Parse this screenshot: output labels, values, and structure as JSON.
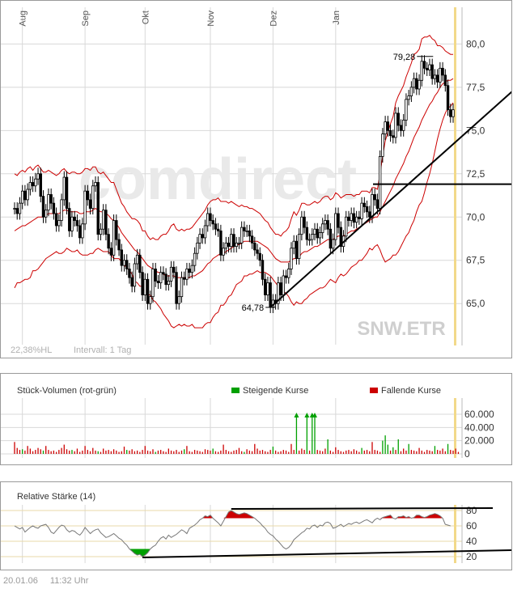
{
  "main": {
    "months": [
      "Aug",
      "Sep",
      "Okt",
      "Nov",
      "Dez",
      "Jan"
    ],
    "y_ticks": [
      "80,0",
      "77,5",
      "75,0",
      "72,5",
      "70,0",
      "67,5",
      "65,0"
    ],
    "watermark": "comdirect",
    "symbol": "SNW.ETR",
    "info_left": "22,38%HL",
    "info_interval": "Intervall: 1 Tag",
    "high_label": "79,28",
    "low_label": "64,78"
  },
  "volume": {
    "title": "Stück-Volumen (rot-grün)",
    "legend_up": "Steigende Kurse",
    "legend_down": "Fallende Kurse",
    "y_ticks": [
      "60.000",
      "40.000",
      "20.000",
      "0"
    ]
  },
  "rsi": {
    "title": "Relative Stärke (14)",
    "y_ticks": [
      "80",
      "60",
      "40",
      "20"
    ]
  },
  "footer": {
    "date": "20.01.06",
    "time": "11:32 Uhr"
  },
  "colors": {
    "band": "#cc0000",
    "up": "#00a000",
    "down": "#cc0000",
    "grid": "#d8d8d8",
    "highlight": "#f2d98a",
    "trend": "#000000"
  },
  "chart_data": [
    {
      "type": "candlestick",
      "x_axis": "date",
      "x_labels": [
        "Aug",
        "Sep",
        "Okt",
        "Nov",
        "Dez",
        "Jan"
      ],
      "ylim": [
        63.7,
        81.0
      ],
      "y_ticks": [
        80.0,
        77.5,
        75.0,
        72.5,
        70.0,
        67.5,
        65.0
      ],
      "close": [
        70.5,
        70.2,
        70.8,
        71.5,
        71.0,
        71.6,
        72.0,
        71.8,
        72.2,
        72.5,
        71.2,
        70.0,
        70.4,
        71.3,
        70.8,
        70.2,
        69.5,
        69.8,
        71.0,
        72.3,
        70.5,
        69.2,
        70.0,
        69.8,
        69.5,
        68.8,
        69.6,
        71.5,
        71.0,
        70.5,
        71.8,
        72.0,
        69.0,
        69.3,
        70.4,
        69.0,
        68.2,
        67.8,
        69.8,
        68.7,
        68.1,
        67.2,
        67.5,
        67.0,
        66.5,
        66.0,
        67.3,
        67.8,
        66.8,
        65.5,
        66.4,
        65.0,
        65.4,
        67.0,
        66.3,
        66.2,
        66.8,
        66.7,
        66.1,
        66.3,
        67.1,
        66.8,
        65.0,
        65.4,
        66.5,
        66.4,
        67.0,
        66.8,
        67.2,
        67.9,
        68.5,
        69.0,
        68.8,
        69.5,
        70.2,
        69.8,
        69.6,
        69.3,
        69.2,
        67.8,
        68.2,
        68.5,
        68.3,
        69.0,
        68.3,
        68.5,
        68.5,
        69.4,
        69.2,
        69.2,
        68.9,
        68.5,
        68.1,
        67.9,
        67.5,
        66.4,
        65.5,
        66.2,
        64.8,
        65.2,
        65.0,
        66.2,
        65.5,
        66.6,
        66.5,
        67.0,
        68.2,
        68.6,
        67.6,
        69.0,
        70.0,
        69.4,
        68.7,
        68.7,
        69.0,
        69.3,
        68.8,
        69.1,
        69.6,
        69.8,
        69.3,
        68.2,
        68.7,
        70.2,
        69.4,
        68.3,
        68.9,
        70.0,
        69.8,
        70.2,
        69.7,
        70.0,
        69.9,
        70.8,
        70.6,
        70.3,
        70.0,
        71.3,
        71.0,
        70.5,
        73.5,
        74.8,
        75.5,
        75.0,
        74.7,
        74.6,
        76.0,
        75.3,
        75.0,
        75.6,
        76.8,
        77.0,
        77.5,
        78.0,
        77.4,
        77.9,
        79.0,
        78.6,
        78.5,
        78.8,
        78.0,
        78.2,
        77.8,
        78.6,
        78.2,
        77.6,
        76.2,
        75.8,
        76.2
      ],
      "band_upper": [
        72.5,
        72.4,
        72.6,
        72.7,
        72.6,
        72.8,
        72.9,
        72.7,
        72.9,
        73.0,
        72.8,
        72.6,
        72.6,
        72.7,
        72.6,
        72.5,
        72.4,
        72.5,
        72.7,
        72.8,
        72.6,
        72.5,
        72.6,
        72.6,
        72.5,
        72.5,
        72.6,
        72.8,
        72.8,
        72.7,
        72.9,
        72.9,
        72.6,
        72.5,
        72.6,
        72.4,
        72.2,
        72.0,
        72.0,
        71.6,
        71.2,
        70.8,
        70.6,
        70.3,
        70.1,
        69.9,
        69.9,
        69.8,
        69.6,
        69.2,
        69.2,
        68.9,
        68.7,
        68.8,
        68.7,
        68.7,
        68.9,
        69.0,
        69.0,
        69.2,
        69.5,
        69.6,
        69.3,
        69.2,
        69.3,
        69.2,
        69.3,
        69.3,
        69.4,
        69.6,
        69.8,
        70.0,
        70.2,
        70.4,
        70.7,
        70.9,
        71.0,
        71.0,
        71.1,
        70.9,
        70.9,
        70.9,
        70.8,
        70.9,
        70.8,
        70.7,
        70.6,
        70.7,
        70.6,
        70.6,
        70.5,
        70.5,
        70.4,
        70.3,
        70.2,
        70.0,
        69.8,
        69.7,
        69.4,
        69.2,
        69.0,
        69.0,
        68.9,
        69.1,
        69.2,
        69.4,
        69.9,
        70.3,
        70.1,
        70.4,
        70.8,
        70.8,
        70.7,
        70.7,
        70.8,
        70.9,
        70.8,
        70.9,
        71.1,
        71.2,
        71.2,
        71.0,
        71.1,
        71.4,
        71.3,
        71.1,
        71.2,
        71.3,
        71.3,
        71.3,
        71.2,
        71.3,
        71.3,
        71.5,
        71.5,
        71.5,
        71.4,
        71.7,
        71.7,
        71.6,
        72.5,
        73.5,
        74.4,
        74.9,
        75.4,
        75.8,
        76.6,
        77.0,
        77.3,
        77.6,
        78.1,
        78.5,
        78.9,
        79.4,
        79.5,
        79.7,
        80.3,
        80.4,
        80.4,
        80.5,
        80.3,
        80.2,
        79.9,
        79.9,
        79.8,
        79.6,
        79.5,
        79.4,
        79.4
      ],
      "band_middle": [
        69.2,
        69.3,
        69.4,
        69.5,
        69.5,
        69.6,
        69.7,
        69.8,
        69.9,
        70.0,
        70.0,
        70.0,
        70.1,
        70.2,
        70.2,
        70.2,
        70.2,
        70.2,
        70.3,
        70.4,
        70.4,
        70.3,
        70.3,
        70.3,
        70.3,
        70.2,
        70.2,
        70.3,
        70.3,
        70.3,
        70.4,
        70.5,
        70.4,
        70.3,
        70.3,
        70.2,
        70.1,
        69.9,
        69.8,
        69.6,
        69.4,
        69.1,
        68.9,
        68.7,
        68.5,
        68.3,
        68.1,
        68.0,
        67.8,
        67.6,
        67.4,
        67.2,
        67.1,
        67.0,
        66.9,
        66.8,
        66.8,
        66.7,
        66.6,
        66.6,
        66.6,
        66.6,
        66.5,
        66.5,
        66.5,
        66.5,
        66.5,
        66.5,
        66.6,
        66.6,
        66.7,
        66.8,
        66.9,
        67.1,
        67.3,
        67.4,
        67.6,
        67.7,
        67.8,
        67.9,
        67.9,
        68.0,
        68.1,
        68.2,
        68.3,
        68.4,
        68.4,
        68.5,
        68.6,
        68.6,
        68.6,
        68.6,
        68.6,
        68.6,
        68.5,
        68.4,
        68.3,
        68.2,
        68.0,
        67.8,
        67.6,
        67.5,
        67.4,
        67.4,
        67.4,
        67.4,
        67.5,
        67.6,
        67.6,
        67.7,
        67.9,
        68.0,
        68.0,
        68.1,
        68.2,
        68.3,
        68.3,
        68.4,
        68.5,
        68.6,
        68.7,
        68.7,
        68.7,
        68.8,
        68.9,
        68.9,
        68.9,
        69.0,
        69.1,
        69.2,
        69.2,
        69.3,
        69.4,
        69.5,
        69.6,
        69.7,
        69.8,
        69.9,
        70.0,
        70.0,
        70.3,
        70.6,
        70.9,
        71.2,
        71.5,
        71.8,
        72.2,
        72.5,
        72.8,
        73.1,
        73.5,
        73.8,
        74.2,
        74.6,
        74.9,
        75.2,
        75.6,
        75.9,
        76.2,
        76.5,
        76.7,
        77.0,
        77.2,
        77.5,
        77.7,
        77.8,
        77.9,
        77.9,
        78.0
      ],
      "band_lower": [
        65.9,
        66.2,
        66.2,
        66.3,
        66.4,
        66.4,
        66.5,
        66.9,
        66.9,
        67.0,
        67.2,
        67.4,
        67.6,
        67.7,
        67.8,
        67.9,
        68.0,
        67.9,
        67.9,
        68.0,
        68.2,
        68.1,
        68.0,
        68.0,
        68.1,
        67.9,
        67.8,
        67.8,
        67.8,
        67.9,
        67.9,
        68.1,
        68.2,
        68.1,
        68.0,
        68.0,
        68.0,
        67.8,
        67.6,
        67.6,
        67.6,
        67.4,
        67.2,
        67.1,
        66.9,
        66.7,
        66.3,
        66.2,
        66.0,
        66.0,
        65.6,
        65.5,
        65.5,
        65.2,
        65.1,
        64.9,
        64.7,
        64.4,
        64.2,
        64.0,
        63.7,
        63.6,
        63.7,
        63.8,
        63.7,
        63.8,
        63.7,
        63.7,
        63.8,
        63.6,
        63.6,
        63.6,
        63.6,
        63.8,
        63.9,
        63.9,
        64.2,
        64.4,
        64.5,
        64.9,
        64.9,
        65.1,
        65.4,
        65.5,
        65.8,
        66.1,
        66.2,
        66.3,
        66.6,
        66.6,
        66.7,
        66.7,
        66.8,
        66.9,
        66.8,
        66.8,
        66.8,
        66.7,
        66.6,
        66.4,
        66.2,
        66.0,
        65.9,
        65.7,
        65.6,
        65.4,
        65.1,
        64.9,
        65.1,
        65.0,
        65.0,
        65.2,
        65.3,
        65.5,
        65.6,
        65.7,
        65.8,
        65.9,
        65.9,
        66.0,
        66.2,
        66.4,
        66.3,
        66.2,
        66.5,
        66.7,
        66.6,
        66.7,
        66.9,
        67.1,
        67.2,
        67.3,
        67.5,
        67.5,
        67.7,
        67.9,
        68.2,
        68.1,
        68.3,
        68.4,
        68.1,
        67.7,
        67.4,
        67.5,
        67.6,
        67.8,
        67.8,
        68.0,
        68.3,
        68.6,
        68.9,
        69.1,
        69.5,
        69.8,
        70.3,
        70.7,
        70.9,
        71.4,
        72.0,
        72.5,
        73.1,
        73.8,
        74.5,
        75.1,
        75.6,
        76.0,
        76.3,
        76.4,
        76.6
      ],
      "annotations": [
        {
          "label": "79,28",
          "value": 79.28,
          "type": "high"
        },
        {
          "label": "64,78",
          "value": 64.78,
          "type": "low"
        }
      ],
      "horizontal_line": 71.9,
      "trendline": [
        {
          "value": 64.78,
          "label": "Start"
        },
        {
          "value": 75.9,
          "label": "End"
        }
      ],
      "watermark": "comdirect",
      "symbol": "SNW.ETR",
      "grid": true
    },
    {
      "type": "bar",
      "title": "Stück-Volumen (rot-grün)",
      "legend": [
        "Steigende Kurse",
        "Fallende Kurse"
      ],
      "ylim": [
        0,
        60000
      ],
      "y_ticks": [
        60000,
        40000,
        20000,
        0
      ],
      "values": [
        18000,
        9000,
        6000,
        7000,
        5000,
        12000,
        8000,
        4000,
        6000,
        9000,
        7000,
        5000,
        12000,
        6000,
        4000,
        5000,
        3000,
        6000,
        9000,
        14000,
        7000,
        5000,
        6000,
        4000,
        8000,
        3000,
        5000,
        12000,
        6000,
        4000,
        9000,
        5000,
        4000,
        3000,
        8000,
        5000,
        6000,
        4000,
        7000,
        5000,
        3000,
        4000,
        11000,
        6000,
        5000,
        7000,
        4000,
        5000,
        3000,
        6000,
        12000,
        5000,
        4000,
        7000,
        3000,
        5000,
        6000,
        4000,
        3000,
        8000,
        5000,
        4000,
        6000,
        3000,
        5000,
        7000,
        12000,
        4000,
        3000,
        6000,
        5000,
        4000,
        3000,
        7000,
        6000,
        5000,
        8000,
        4000,
        3000,
        5000,
        14000,
        6000,
        4000,
        3000,
        5000,
        6000,
        9000,
        4000,
        3000,
        7000,
        5000,
        4000,
        15000,
        8000,
        5000,
        6000,
        4000,
        3000,
        6000,
        11000,
        5000,
        3000,
        4000,
        6000,
        5000,
        3000,
        15000,
        6000,
        70000,
        5000,
        8000,
        6000,
        70000,
        5000,
        70000,
        70000,
        6000,
        5000,
        4000,
        8000,
        22000,
        5000,
        3000,
        10000,
        6000,
        4000,
        3000,
        5000,
        6000,
        4000,
        7000,
        5000,
        3000,
        9000,
        5000,
        6000,
        4000,
        18000,
        6000,
        5000,
        3000,
        20000,
        28000,
        14000,
        5000,
        10000,
        6000,
        22000,
        4000,
        8000,
        5000,
        15000,
        6000,
        5000,
        4000,
        9000,
        5000,
        3000,
        6000,
        5000,
        4000,
        12000,
        6000,
        5000,
        8000,
        4000,
        15000,
        6000,
        5000,
        8000,
        3000
      ],
      "colors": [
        "#cc0000",
        "#cc0000",
        "#cc0000",
        "#00a000",
        "#cc0000",
        "#cc0000",
        "#cc0000",
        "#cc0000",
        "#cc0000",
        "#cc0000",
        "#cc0000",
        "#00a000",
        "#cc0000",
        "#cc0000",
        "#cc0000",
        "#cc0000",
        "#cc0000",
        "#cc0000",
        "#cc0000",
        "#cc0000",
        "#cc0000",
        "#cc0000",
        "#00a000",
        "#cc0000",
        "#cc0000",
        "#cc0000",
        "#cc0000",
        "#cc0000",
        "#cc0000",
        "#cc0000",
        "#cc0000",
        "#cc0000",
        "#00a000",
        "#cc0000",
        "#cc0000",
        "#cc0000",
        "#cc0000",
        "#cc0000",
        "#cc0000",
        "#cc0000",
        "#cc0000",
        "#cc0000",
        "#cc0000",
        "#00a000",
        "#cc0000",
        "#cc0000",
        "#cc0000",
        "#cc0000",
        "#cc0000",
        "#cc0000",
        "#cc0000",
        "#cc0000",
        "#cc0000",
        "#cc0000",
        "#00a000",
        "#cc0000",
        "#cc0000",
        "#cc0000",
        "#cc0000",
        "#cc0000",
        "#cc0000",
        "#cc0000",
        "#cc0000",
        "#cc0000",
        "#cc0000",
        "#00a000",
        "#cc0000",
        "#cc0000",
        "#cc0000",
        "#cc0000",
        "#cc0000",
        "#cc0000",
        "#cc0000",
        "#cc0000",
        "#cc0000",
        "#cc0000",
        "#00a000",
        "#cc0000",
        "#cc0000",
        "#cc0000",
        "#cc0000",
        "#cc0000",
        "#cc0000",
        "#cc0000",
        "#cc0000",
        "#cc0000",
        "#cc0000",
        "#cc0000",
        "#00a000",
        "#cc0000",
        "#cc0000",
        "#cc0000",
        "#cc0000",
        "#cc0000",
        "#cc0000",
        "#cc0000",
        "#cc0000",
        "#cc0000",
        "#cc0000",
        "#00a000",
        "#cc0000",
        "#cc0000",
        "#cc0000",
        "#cc0000",
        "#cc0000",
        "#cc0000",
        "#cc0000",
        "#cc0000",
        "#00a000",
        "#cc0000",
        "#cc0000",
        "#cc0000",
        "#00a000",
        "#cc0000",
        "#00a000",
        "#00a000",
        "#cc0000",
        "#cc0000",
        "#cc0000",
        "#cc0000",
        "#00a000",
        "#cc0000",
        "#cc0000",
        "#cc0000",
        "#cc0000",
        "#cc0000",
        "#cc0000",
        "#cc0000",
        "#cc0000",
        "#cc0000",
        "#cc0000",
        "#cc0000",
        "#cc0000",
        "#00a000",
        "#cc0000",
        "#cc0000",
        "#cc0000",
        "#cc0000",
        "#cc0000",
        "#cc0000",
        "#cc0000",
        "#00a000",
        "#00a000",
        "#00a000",
        "#cc0000",
        "#00a000",
        "#cc0000",
        "#00a000",
        "#cc0000",
        "#cc0000",
        "#cc0000",
        "#00a000",
        "#cc0000",
        "#cc0000",
        "#cc0000",
        "#cc0000",
        "#cc0000",
        "#cc0000",
        "#cc0000",
        "#cc0000",
        "#cc0000",
        "#00a000",
        "#cc0000",
        "#cc0000",
        "#cc0000",
        "#cc0000",
        "#00a000",
        "#cc0000",
        "#cc0000",
        "#cc0000",
        "#cc0000"
      ]
    },
    {
      "type": "line",
      "title": "Relative Stärke (14)",
      "ylim": [
        10,
        88
      ],
      "y_ticks": [
        80,
        60,
        40,
        20
      ],
      "levels": [
        30,
        70
      ],
      "values": [
        60,
        58,
        56,
        58,
        52,
        55,
        58,
        60,
        58,
        57,
        60,
        61,
        62,
        58,
        52,
        50,
        54,
        58,
        61,
        60,
        55,
        52,
        54,
        53,
        50,
        48,
        52,
        58,
        54,
        50,
        53,
        55,
        56,
        51,
        48,
        45,
        46,
        48,
        50,
        47,
        44,
        42,
        38,
        35,
        30,
        27,
        24,
        22,
        23,
        20,
        22,
        25,
        30,
        33,
        35,
        40,
        44,
        46,
        43,
        48,
        45,
        47,
        49,
        52,
        55,
        53,
        50,
        57,
        59,
        61,
        64,
        68,
        70,
        73,
        72,
        74,
        70,
        67,
        64,
        60,
        66,
        72,
        78,
        80,
        78,
        76,
        75,
        76,
        77,
        76,
        74,
        72,
        70,
        67,
        64,
        60,
        57,
        52,
        49,
        47,
        43,
        40,
        36,
        32,
        30,
        32,
        36,
        42,
        45,
        48,
        51,
        53,
        57,
        56,
        60,
        61,
        58,
        61,
        60,
        64,
        65,
        63,
        57,
        58,
        60,
        62,
        59,
        61,
        63,
        62,
        64,
        65,
        63,
        65,
        67,
        68,
        66,
        64,
        68,
        70,
        68,
        71,
        72,
        73,
        74,
        70,
        69,
        72,
        72,
        73,
        71,
        72,
        70,
        71,
        74,
        74,
        72,
        71,
        72,
        74,
        75,
        76,
        75,
        73,
        70,
        62,
        61,
        60
      ],
      "grid": true
    }
  ]
}
